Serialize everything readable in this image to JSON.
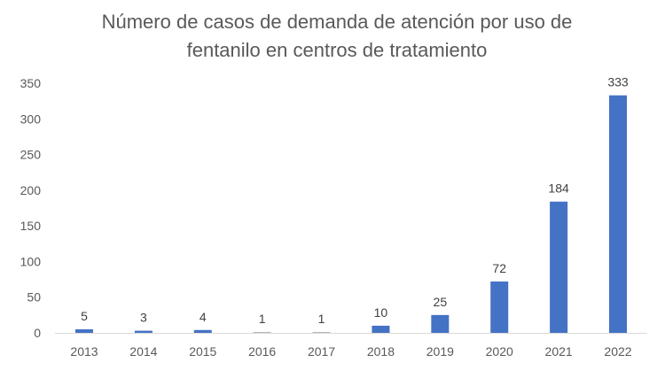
{
  "chart_data": {
    "type": "bar",
    "title": [
      "Número de casos de demanda de atención por uso de",
      "fentanilo en centros de tratamiento"
    ],
    "xlabel": "",
    "ylabel": "",
    "categories": [
      "2013",
      "2014",
      "2015",
      "2016",
      "2017",
      "2018",
      "2019",
      "2020",
      "2021",
      "2022"
    ],
    "values": [
      5,
      3,
      4,
      1,
      1,
      10,
      25,
      72,
      184,
      333
    ],
    "data_labels": [
      "5",
      "3",
      "4",
      "1",
      "1",
      "10",
      "25",
      "72",
      "184",
      "333"
    ],
    "ylim": [
      0,
      350
    ],
    "yticks": [
      "0",
      "50",
      "100",
      "150",
      "200",
      "250",
      "300",
      "350"
    ],
    "grid": false,
    "legend": "none",
    "bar_color": "#4472C4"
  }
}
